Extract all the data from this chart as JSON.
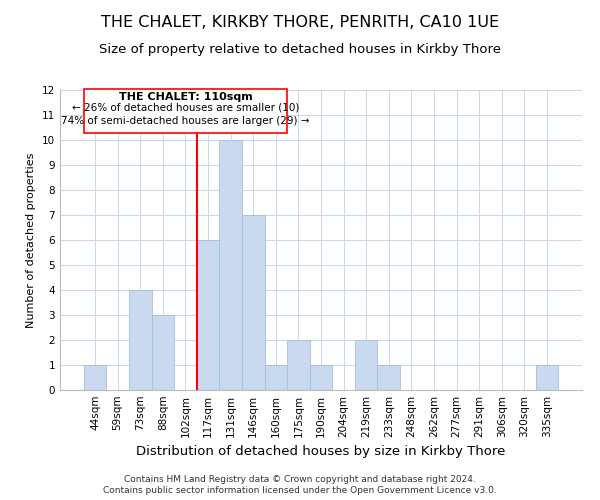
{
  "title": "THE CHALET, KIRKBY THORE, PENRITH, CA10 1UE",
  "subtitle": "Size of property relative to detached houses in Kirkby Thore",
  "xlabel": "Distribution of detached houses by size in Kirkby Thore",
  "ylabel": "Number of detached properties",
  "bin_labels": [
    "44sqm",
    "59sqm",
    "73sqm",
    "88sqm",
    "102sqm",
    "117sqm",
    "131sqm",
    "146sqm",
    "160sqm",
    "175sqm",
    "190sqm",
    "204sqm",
    "219sqm",
    "233sqm",
    "248sqm",
    "262sqm",
    "277sqm",
    "291sqm",
    "306sqm",
    "320sqm",
    "335sqm"
  ],
  "bar_heights": [
    1,
    0,
    4,
    3,
    0,
    6,
    10,
    7,
    1,
    2,
    1,
    0,
    2,
    1,
    0,
    0,
    0,
    0,
    0,
    0,
    1
  ],
  "bar_color": "#c9d9f0",
  "bar_edge_color": "#a8bcd8",
  "vline_x_index": 4.5,
  "vline_color": "red",
  "ylim": [
    0,
    12
  ],
  "yticks": [
    0,
    1,
    2,
    3,
    4,
    5,
    6,
    7,
    8,
    9,
    10,
    11,
    12
  ],
  "annotation_title": "THE CHALET: 110sqm",
  "annotation_line1": "← 26% of detached houses are smaller (10)",
  "annotation_line2": "74% of semi-detached houses are larger (29) →",
  "footer1": "Contains HM Land Registry data © Crown copyright and database right 2024.",
  "footer2": "Contains public sector information licensed under the Open Government Licence v3.0.",
  "title_fontsize": 11.5,
  "subtitle_fontsize": 9.5,
  "xlabel_fontsize": 9.5,
  "ylabel_fontsize": 8,
  "tick_fontsize": 7.5,
  "annotation_fontsize_title": 8,
  "annotation_fontsize_body": 7.5,
  "footer_fontsize": 6.5
}
